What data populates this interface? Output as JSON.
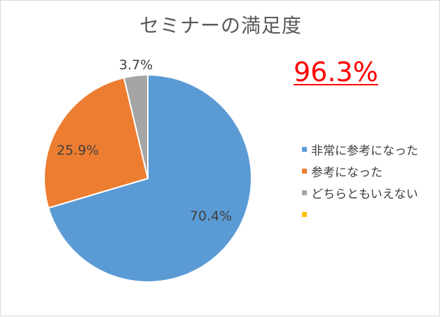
{
  "chart_data": {
    "type": "pie",
    "title": "セミナーの満足度",
    "highlight": "96.3%",
    "slices": [
      {
        "label": "非常に参考になった",
        "value": 70.4,
        "value_label": "70.4%",
        "color": "#5b9bd5"
      },
      {
        "label": "参考になった",
        "value": 25.9,
        "value_label": "25.9%",
        "color": "#ed7d31"
      },
      {
        "label": "どちらともいえない",
        "value": 3.7,
        "value_label": "3.7%",
        "color": "#a5a5a5"
      },
      {
        "label": "",
        "value": 0,
        "value_label": "",
        "color": "#ffc000"
      }
    ],
    "start_angle": "12 o'clock",
    "direction": "clockwise",
    "legend_position": "right"
  }
}
